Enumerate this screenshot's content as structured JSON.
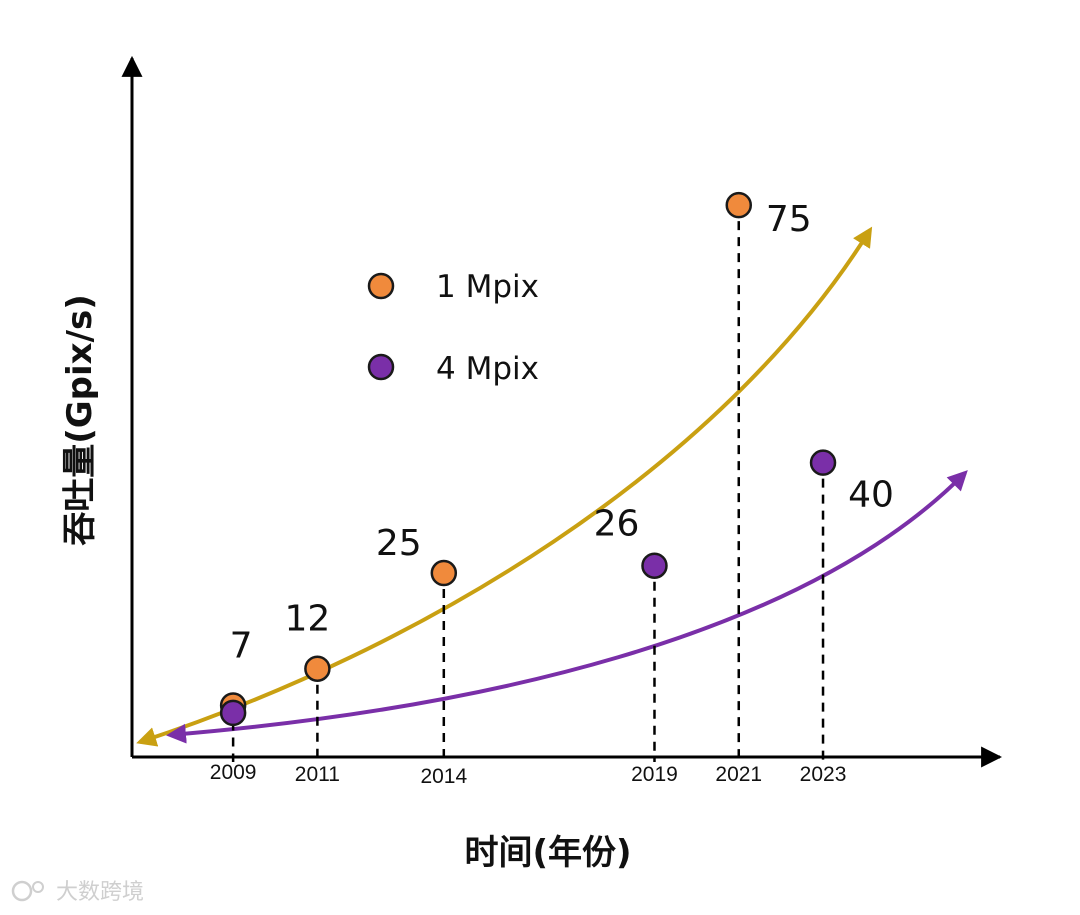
{
  "chart_data": {
    "type": "scatter",
    "title": "",
    "xlabel": "时间(年份)",
    "ylabel": "吞吐量(Gpix/s)",
    "x_ticks": [
      "2009",
      "2011",
      "2014",
      "2019",
      "2021",
      "2023"
    ],
    "xlim": [
      2006.6,
      2027.2
    ],
    "ylim": [
      0,
      95
    ],
    "grid": false,
    "legend_position": "top-left",
    "series": [
      {
        "name": "1 Mpix",
        "color": "#f08a3c",
        "curve_color": "#c9a012",
        "points": [
          {
            "x": 2009,
            "y": 7,
            "label": "7"
          },
          {
            "x": 2011,
            "y": 12,
            "label": "12"
          },
          {
            "x": 2014,
            "y": 25,
            "label": "25"
          },
          {
            "x": 2021,
            "y": 75,
            "label": "75"
          }
        ]
      },
      {
        "name": "4 Mpix",
        "color": "#7a2fa8",
        "curve_color": "#7a2fa8",
        "points": [
          {
            "x": 2009,
            "y": 6,
            "label": ""
          },
          {
            "x": 2019,
            "y": 26,
            "label": "26"
          },
          {
            "x": 2023,
            "y": 40,
            "label": "40"
          }
        ]
      }
    ],
    "watermark": "大数跨境"
  }
}
